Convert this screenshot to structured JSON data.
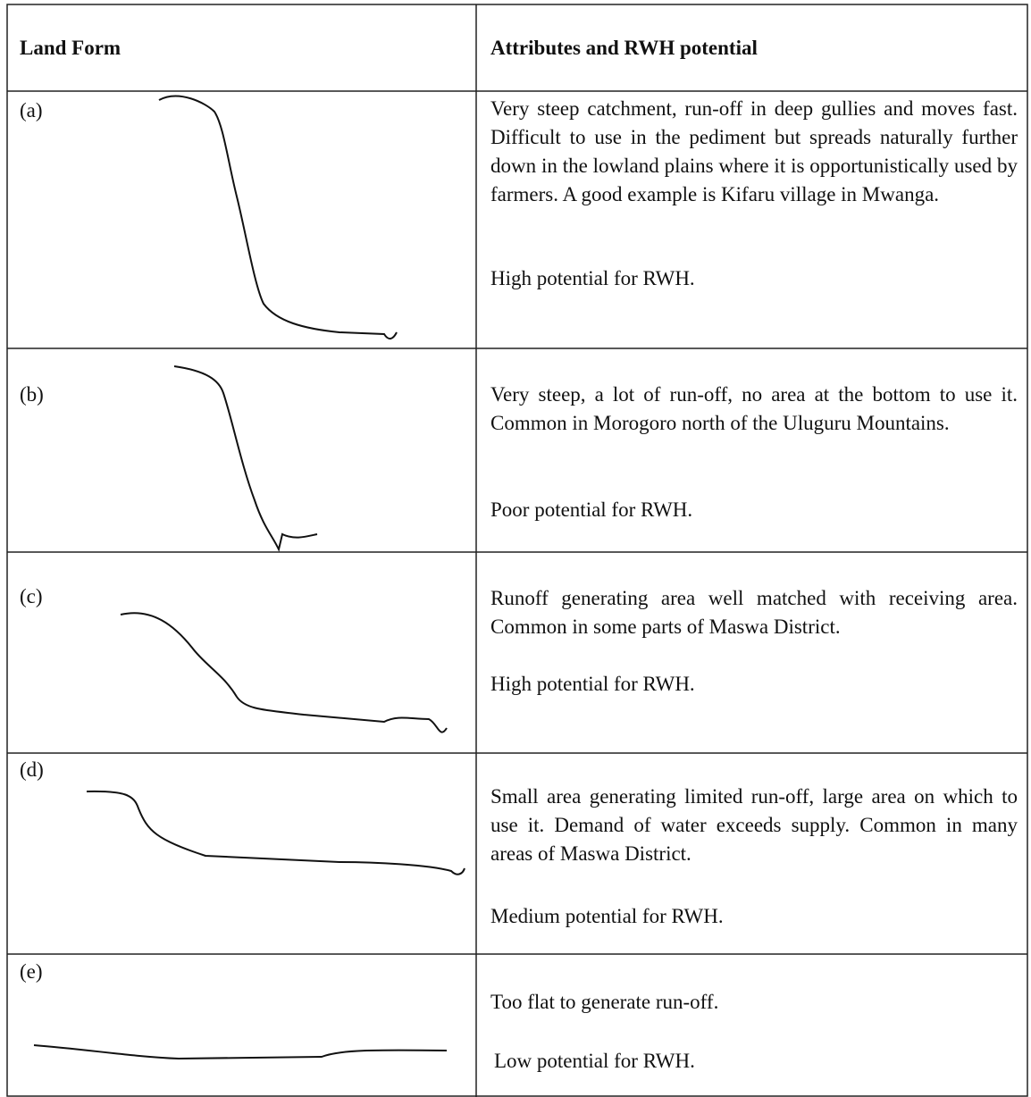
{
  "header": {
    "col1": "Land Form",
    "col2": "Attributes and RWH potential"
  },
  "rows": [
    {
      "label": "(a)",
      "description": "Very steep catchment, run-off in deep gullies and moves fast. Difficult to use in the pediment but spreads naturally further down in the lowland plains where it is opportunistically used by farmers. A good example is Kifaru village in Mwanga.",
      "potential": "High potential for RWH."
    },
    {
      "label": "(b)",
      "description": "Very steep, a lot of run-off, no area at the bottom to use it. Common in Morogoro north of the Uluguru Mountains.",
      "potential": "Poor potential for RWH."
    },
    {
      "label": "(c)",
      "description": "Runoff generating area well matched with receiving area. Common in some parts of Maswa District.",
      "potential": "High potential for RWH."
    },
    {
      "label": "(d)",
      "description": "Small area generating limited run-off, large area on which to use it. Demand of water exceeds supply. Common in many areas of Maswa District.",
      "potential": "Medium potential for RWH."
    },
    {
      "label": "(e)",
      "description": "Too flat to generate run-off.",
      "potential": "Low potential for RWH."
    }
  ]
}
